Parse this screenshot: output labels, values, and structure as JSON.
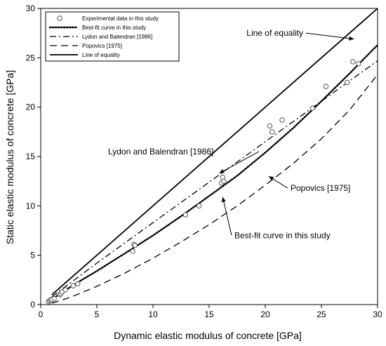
{
  "chart_data": {
    "type": "scatter",
    "xlabel": "Dynamic elastic modulus of concrete [GPa]",
    "ylabel": "Static elastic modulus of concrete [GPa]",
    "xlim": [
      0,
      30
    ],
    "ylim": [
      0,
      30
    ],
    "xticks": [
      0,
      5,
      10,
      15,
      20,
      25,
      30
    ],
    "yticks": [
      0,
      5,
      10,
      15,
      20,
      25,
      30
    ],
    "grid": false,
    "legend_position": "top-left",
    "legend": [
      {
        "label": "Experimental data in this study",
        "style": "circle"
      },
      {
        "label": "Best-fit curve in this study",
        "style": "dotted"
      },
      {
        "label": "Lydon and Balendran [1986]",
        "style": "dashdot"
      },
      {
        "label": "Popovics [1975]",
        "style": "dashed"
      },
      {
        "label": "Line of equality",
        "style": "solid"
      }
    ],
    "series": [
      {
        "name": "Experimental data in this study",
        "kind": "points",
        "points": [
          [
            0.7,
            0.3
          ],
          [
            0.8,
            0.4
          ],
          [
            0.9,
            0.5
          ],
          [
            1.0,
            0.5
          ],
          [
            1.2,
            0.6
          ],
          [
            1.7,
            1.0
          ],
          [
            1.8,
            1.1
          ],
          [
            1.9,
            1.3
          ],
          [
            2.2,
            1.5
          ],
          [
            2.9,
            1.9
          ],
          [
            3.3,
            2.1
          ],
          [
            8.2,
            5.4
          ],
          [
            8.3,
            6.1
          ],
          [
            8.4,
            6.0
          ],
          [
            12.9,
            9.1
          ],
          [
            14.1,
            10.0
          ],
          [
            16.1,
            12.3
          ],
          [
            16.3,
            12.5
          ],
          [
            16.2,
            12.9
          ],
          [
            20.4,
            18.1
          ],
          [
            20.6,
            17.5
          ],
          [
            21.5,
            18.7
          ],
          [
            24.2,
            19.9
          ],
          [
            25.4,
            22.1
          ],
          [
            27.3,
            22.5
          ],
          [
            27.8,
            24.6
          ],
          [
            28.3,
            24.4
          ]
        ]
      },
      {
        "name": "Best-fit curve in this study",
        "kind": "curve",
        "style": "dotted",
        "points": [
          [
            1,
            0.55
          ],
          [
            2,
            1.3
          ],
          [
            3,
            2.05
          ],
          [
            5,
            3.4
          ],
          [
            8,
            5.55
          ],
          [
            10,
            7.0
          ],
          [
            12.5,
            8.95
          ],
          [
            15,
            11.0
          ],
          [
            17.5,
            13.05
          ],
          [
            20,
            15.4
          ],
          [
            22.5,
            17.9
          ],
          [
            25,
            20.6
          ],
          [
            27.5,
            23.4
          ],
          [
            30,
            26.3
          ]
        ]
      },
      {
        "name": "Lydon and Balendran [1986]",
        "kind": "curve",
        "style": "dashdot",
        "points": [
          [
            1,
            0.8
          ],
          [
            5,
            4.2
          ],
          [
            10,
            8.3
          ],
          [
            15,
            12.4
          ],
          [
            20,
            16.5
          ],
          [
            25,
            20.6
          ],
          [
            30,
            24.7
          ]
        ]
      },
      {
        "name": "Popovics [1975]",
        "kind": "curve",
        "style": "dashed",
        "points": [
          [
            1,
            0.15
          ],
          [
            2,
            0.5
          ],
          [
            3,
            0.9
          ],
          [
            5,
            1.85
          ],
          [
            7.5,
            3.2
          ],
          [
            10,
            4.7
          ],
          [
            12.5,
            6.35
          ],
          [
            15,
            8.1
          ],
          [
            17.5,
            10.0
          ],
          [
            20,
            12.1
          ],
          [
            22.5,
            14.3
          ],
          [
            25,
            16.8
          ],
          [
            27.5,
            19.7
          ],
          [
            30,
            23.3
          ]
        ]
      },
      {
        "name": "Line of equality",
        "kind": "curve",
        "style": "solid",
        "points": [
          [
            1,
            1
          ],
          [
            30,
            30
          ]
        ]
      }
    ],
    "annotations": [
      {
        "text": "Line of equality",
        "anchor": [
          23.5,
          27.5
        ],
        "target": [
          27.9,
          26.9
        ]
      },
      {
        "text": "Lydon and Balendran [1986]",
        "anchor": [
          6.0,
          15.5
        ],
        "target": [
          15.9,
          13.3
        ]
      },
      {
        "text": "Popovics [1975]",
        "anchor": [
          22.0,
          11.8
        ],
        "target": [
          20.3,
          13.0
        ]
      },
      {
        "text": "Best-fit curve in this study",
        "anchor": [
          17.0,
          7.0
        ],
        "target": [
          16.2,
          10.9
        ]
      }
    ]
  }
}
